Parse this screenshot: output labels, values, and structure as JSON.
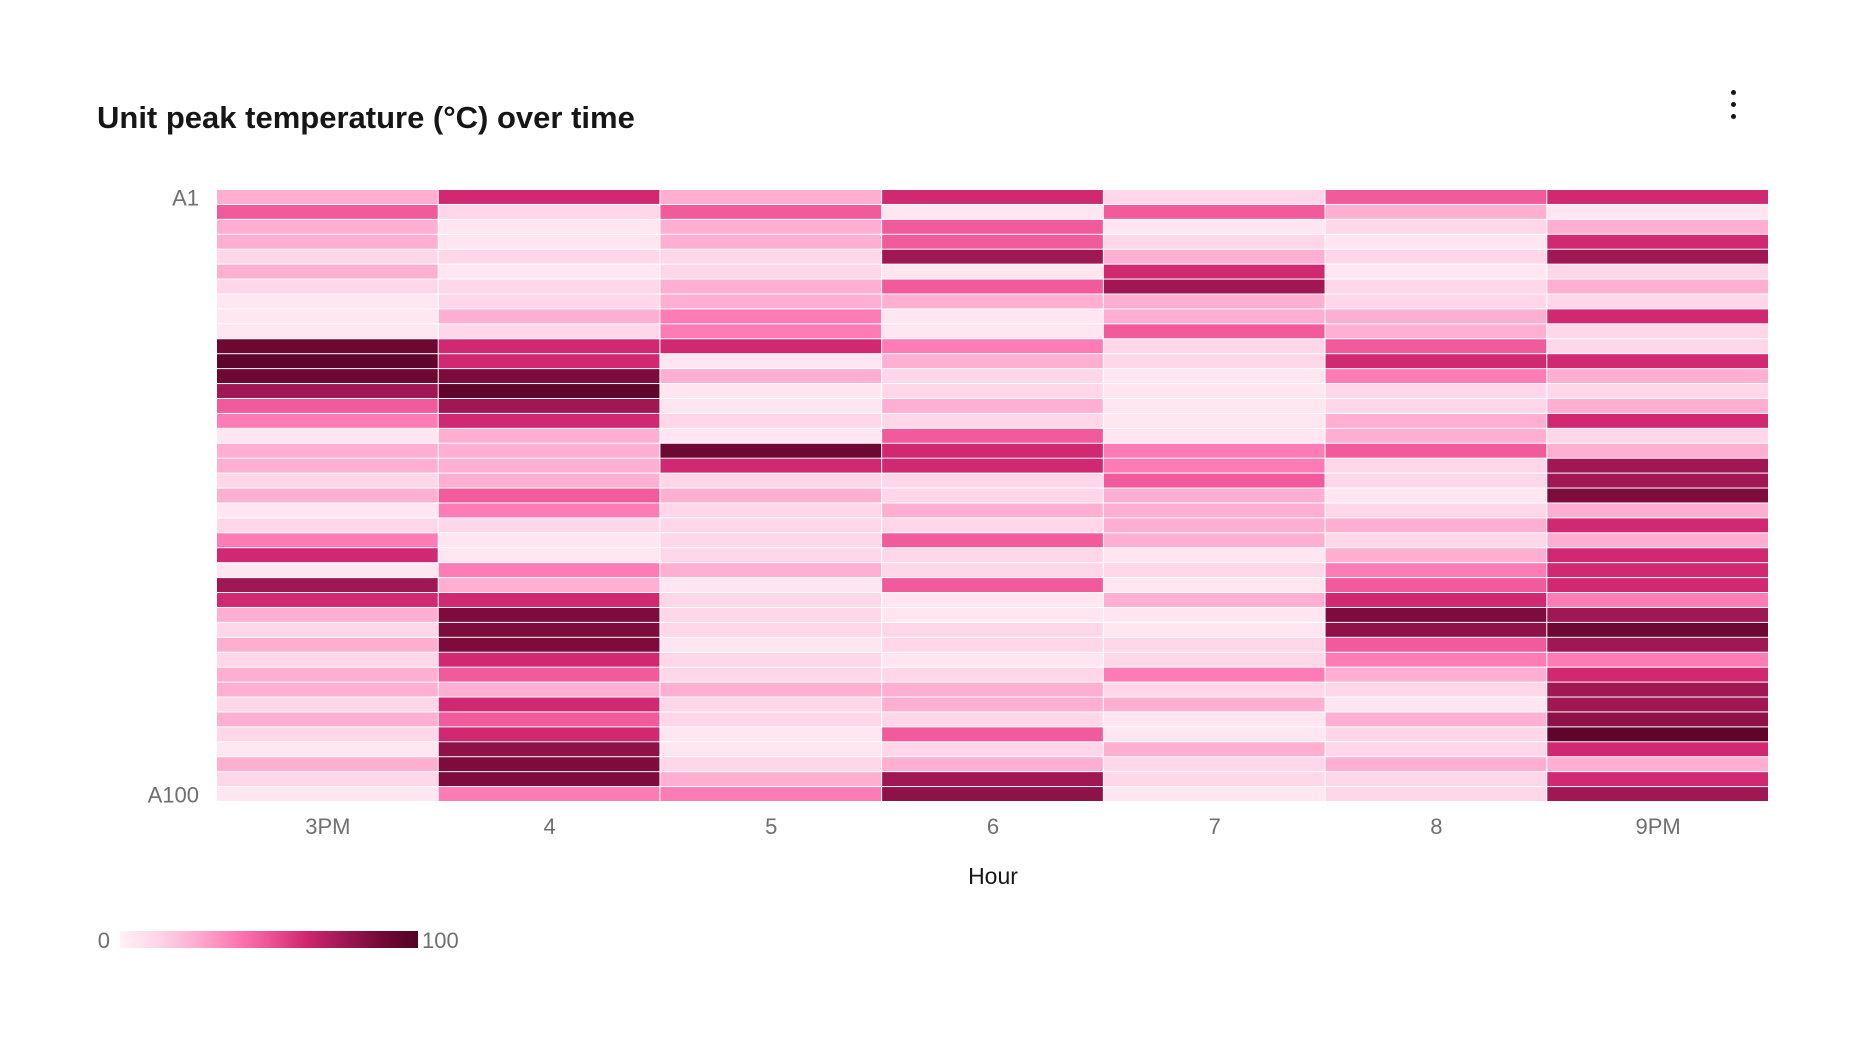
{
  "card": {
    "title": "Unit peak temperature (°C) over time",
    "menu_icon": "overflow-menu-vertical-icon"
  },
  "chart_data": {
    "type": "heatmap",
    "title": "Unit peak temperature (°C) over time",
    "xlabel": "Hour",
    "ylabel": "",
    "x_categories": [
      "3PM",
      "4",
      "5",
      "6",
      "7",
      "8",
      "9PM"
    ],
    "y_categories_first": "A1",
    "y_categories_last": "A100",
    "y_tick_labels": [
      "A1",
      "A100"
    ],
    "row_count": 41,
    "colorscale": {
      "min": 0,
      "max": 100,
      "min_label": "0",
      "max_label": "100",
      "colors": [
        "#fff0f7",
        "#ffd6e8",
        "#ffafd2",
        "#ff7eb6",
        "#ee5396",
        "#d02670",
        "#9f1853",
        "#740937",
        "#510224"
      ]
    },
    "columns": [
      {
        "hour": "3PM",
        "values": [
          25,
          48,
          25,
          25,
          12,
          25,
          12,
          5,
          5,
          5,
          90,
          95,
          90,
          75,
          48,
          38,
          5,
          25,
          25,
          12,
          25,
          5,
          12,
          38,
          62,
          5,
          75,
          62,
          25,
          12,
          25,
          12,
          25,
          25,
          12,
          25,
          12,
          5,
          25,
          12,
          5
        ]
      },
      {
        "hour": "4",
        "values": [
          62,
          12,
          5,
          5,
          12,
          5,
          12,
          12,
          25,
          12,
          62,
          62,
          85,
          95,
          75,
          62,
          25,
          25,
          25,
          25,
          48,
          38,
          12,
          5,
          5,
          38,
          25,
          62,
          85,
          85,
          85,
          62,
          48,
          25,
          62,
          48,
          62,
          80,
          85,
          85,
          38
        ]
      },
      {
        "hour": "5",
        "values": [
          25,
          48,
          25,
          25,
          12,
          12,
          25,
          25,
          38,
          38,
          62,
          5,
          25,
          5,
          5,
          12,
          5,
          90,
          62,
          12,
          25,
          12,
          12,
          12,
          12,
          25,
          5,
          12,
          12,
          12,
          5,
          12,
          12,
          25,
          12,
          12,
          5,
          5,
          12,
          25,
          38
        ]
      },
      {
        "hour": "6",
        "values": [
          62,
          5,
          48,
          48,
          75,
          5,
          48,
          25,
          5,
          5,
          38,
          25,
          12,
          12,
          25,
          12,
          48,
          62,
          62,
          12,
          12,
          25,
          12,
          48,
          12,
          12,
          48,
          5,
          5,
          12,
          12,
          5,
          12,
          25,
          25,
          12,
          48,
          12,
          25,
          75,
          80
        ]
      },
      {
        "hour": "7",
        "values": [
          12,
          48,
          5,
          12,
          25,
          62,
          75,
          25,
          25,
          48,
          12,
          12,
          5,
          5,
          5,
          5,
          5,
          38,
          38,
          48,
          25,
          25,
          25,
          25,
          5,
          12,
          5,
          25,
          5,
          5,
          12,
          12,
          38,
          12,
          25,
          5,
          5,
          25,
          12,
          12,
          5
        ]
      },
      {
        "hour": "8",
        "values": [
          48,
          25,
          12,
          5,
          12,
          5,
          12,
          12,
          25,
          25,
          48,
          62,
          38,
          12,
          12,
          25,
          25,
          48,
          12,
          12,
          5,
          12,
          25,
          12,
          25,
          38,
          48,
          62,
          85,
          80,
          48,
          38,
          25,
          12,
          5,
          25,
          12,
          12,
          25,
          12,
          12
        ]
      },
      {
        "hour": "9PM",
        "values": [
          62,
          5,
          25,
          62,
          75,
          12,
          25,
          12,
          62,
          12,
          12,
          62,
          25,
          12,
          25,
          62,
          12,
          25,
          75,
          75,
          85,
          25,
          62,
          25,
          62,
          62,
          62,
          38,
          75,
          90,
          75,
          38,
          62,
          75,
          75,
          80,
          95,
          62,
          25,
          62,
          75
        ]
      }
    ]
  }
}
